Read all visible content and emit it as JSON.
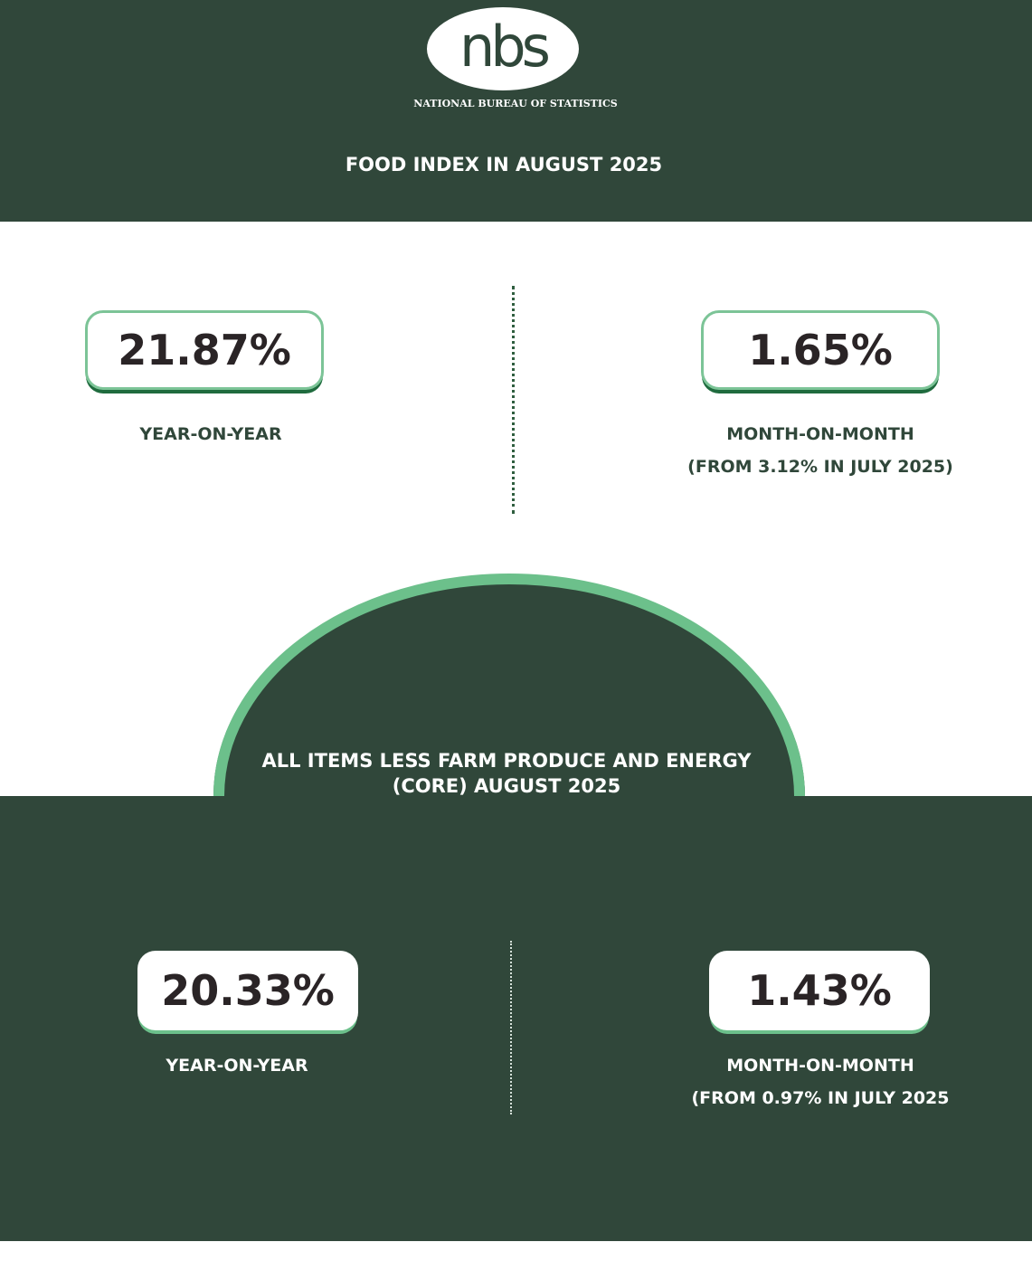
{
  "logo": {
    "mark": "nbs",
    "subtitle": "NATIONAL BUREAU OF STATISTICS"
  },
  "header": {
    "title": "FOOD INDEX IN AUGUST 2025"
  },
  "food_index": {
    "year_on_year": {
      "value": "21.87%",
      "label": "YEAR-ON-YEAR"
    },
    "month_on_month": {
      "value": "1.65%",
      "label": "MONTH-ON-MONTH",
      "note": "(FROM 3.12% IN JULY 2025)"
    }
  },
  "core": {
    "title_line1": "ALL ITEMS LESS FARM PRODUCE AND ENERGY",
    "title_line2": "(CORE) AUGUST 2025",
    "year_on_year": {
      "value": "20.33%",
      "label": "YEAR-ON-YEAR"
    },
    "month_on_month": {
      "value": "1.43%",
      "label": "MONTH-ON-MONTH",
      "note": "(FROM 0.97% IN JULY 2025"
    }
  },
  "colors": {
    "dark_green": "#30473a",
    "accent_green": "#6cc08b",
    "white": "#ffffff"
  }
}
